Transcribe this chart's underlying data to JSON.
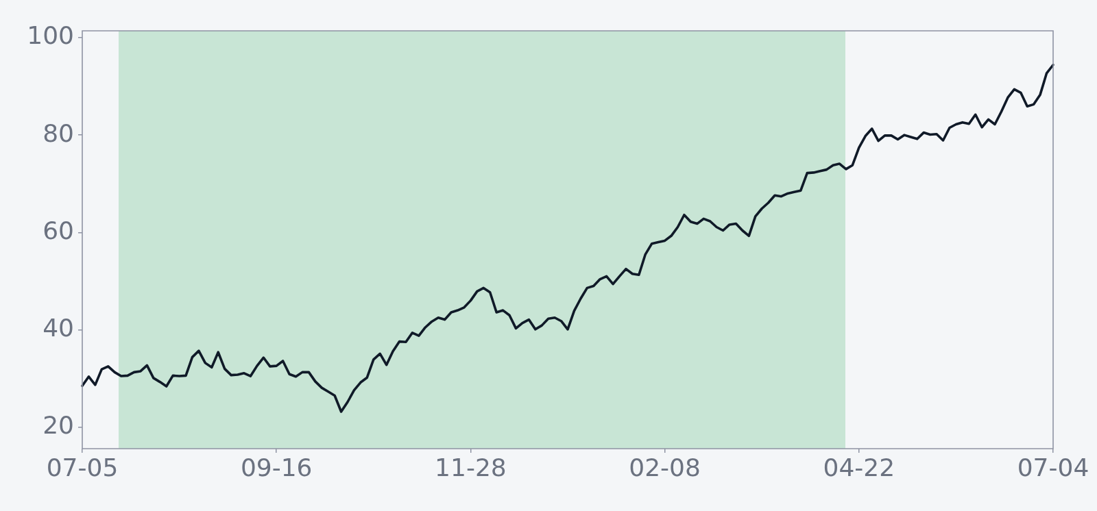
{
  "chart_data": {
    "type": "line",
    "categories": [
      "07-05",
      null,
      null,
      null,
      null,
      null,
      null,
      null,
      null,
      null,
      null,
      null,
      null,
      null,
      null,
      null,
      null,
      null,
      null,
      null,
      null,
      null,
      null,
      null,
      null,
      null,
      null,
      null,
      null,
      null,
      "09-16",
      null,
      null,
      null,
      null,
      null,
      null,
      null,
      null,
      null,
      null,
      null,
      null,
      null,
      null,
      null,
      null,
      null,
      null,
      null,
      null,
      null,
      null,
      null,
      null,
      null,
      null,
      null,
      null,
      null,
      "11-28",
      null,
      null,
      null,
      null,
      null,
      null,
      null,
      null,
      null,
      null,
      null,
      null,
      null,
      null,
      null,
      null,
      null,
      null,
      null,
      null,
      null,
      null,
      null,
      null,
      null,
      null,
      null,
      null,
      null,
      "02-08",
      null,
      null,
      null,
      null,
      null,
      null,
      null,
      null,
      null,
      null,
      null,
      null,
      null,
      null,
      null,
      null,
      null,
      null,
      null,
      null,
      null,
      null,
      null,
      null,
      null,
      null,
      null,
      null,
      null,
      "04-22",
      null,
      null,
      null,
      null,
      null,
      null,
      null,
      null,
      null,
      null,
      null,
      null,
      null,
      null,
      null,
      null,
      null,
      null,
      null,
      null,
      null,
      null,
      null,
      null,
      null,
      null,
      null,
      null,
      null,
      "07-04"
    ],
    "values": [
      28.5,
      30.4,
      28.7,
      31.9,
      32.5,
      31.3,
      30.5,
      30.6,
      31.3,
      31.5,
      32.7,
      30.1,
      29.3,
      28.4,
      30.6,
      30.5,
      30.6,
      34.4,
      35.7,
      33.2,
      32.3,
      35.4,
      32.0,
      30.7,
      30.8,
      31.1,
      30.5,
      32.6,
      34.3,
      32.5,
      32.6,
      33.6,
      30.9,
      30.4,
      31.3,
      31.3,
      29.4,
      28.1,
      27.3,
      26.5,
      23.2,
      25.2,
      27.6,
      29.2,
      30.2,
      33.9,
      35.1,
      32.8,
      35.6,
      37.6,
      37.5,
      39.4,
      38.8,
      40.5,
      41.7,
      42.5,
      42.1,
      43.6,
      44.0,
      44.6,
      46.0,
      47.9,
      48.6,
      47.7,
      43.6,
      44.0,
      43.0,
      40.3,
      41.4,
      42.1,
      40.1,
      40.9,
      42.3,
      42.5,
      41.8,
      40.1,
      43.9,
      46.4,
      48.6,
      49.0,
      50.4,
      51.0,
      49.4,
      51.0,
      52.5,
      51.5,
      51.3,
      55.5,
      57.7,
      58.0,
      58.3,
      59.3,
      61.1,
      63.6,
      62.2,
      61.8,
      62.8,
      62.3,
      61.1,
      60.4,
      61.6,
      61.8,
      60.4,
      59.3,
      63.3,
      64.9,
      66.1,
      67.6,
      67.4,
      68.0,
      68.3,
      68.6,
      72.2,
      72.3,
      72.6,
      72.9,
      73.8,
      74.1,
      73.0,
      73.8,
      77.4,
      79.8,
      81.3,
      78.8,
      79.9,
      79.9,
      79.1,
      80.0,
      79.6,
      79.2,
      80.5,
      80.1,
      80.2,
      78.9,
      81.5,
      82.2,
      82.6,
      82.3,
      84.2,
      81.6,
      83.2,
      82.2,
      84.8,
      87.7,
      89.4,
      88.7,
      85.9,
      86.3,
      88.3,
      92.7,
      94.4
    ],
    "color": "#101a28",
    "ylim": [
      15.6,
      101.4
    ],
    "yticks": [
      20,
      40,
      60,
      80,
      100
    ]
  }
}
